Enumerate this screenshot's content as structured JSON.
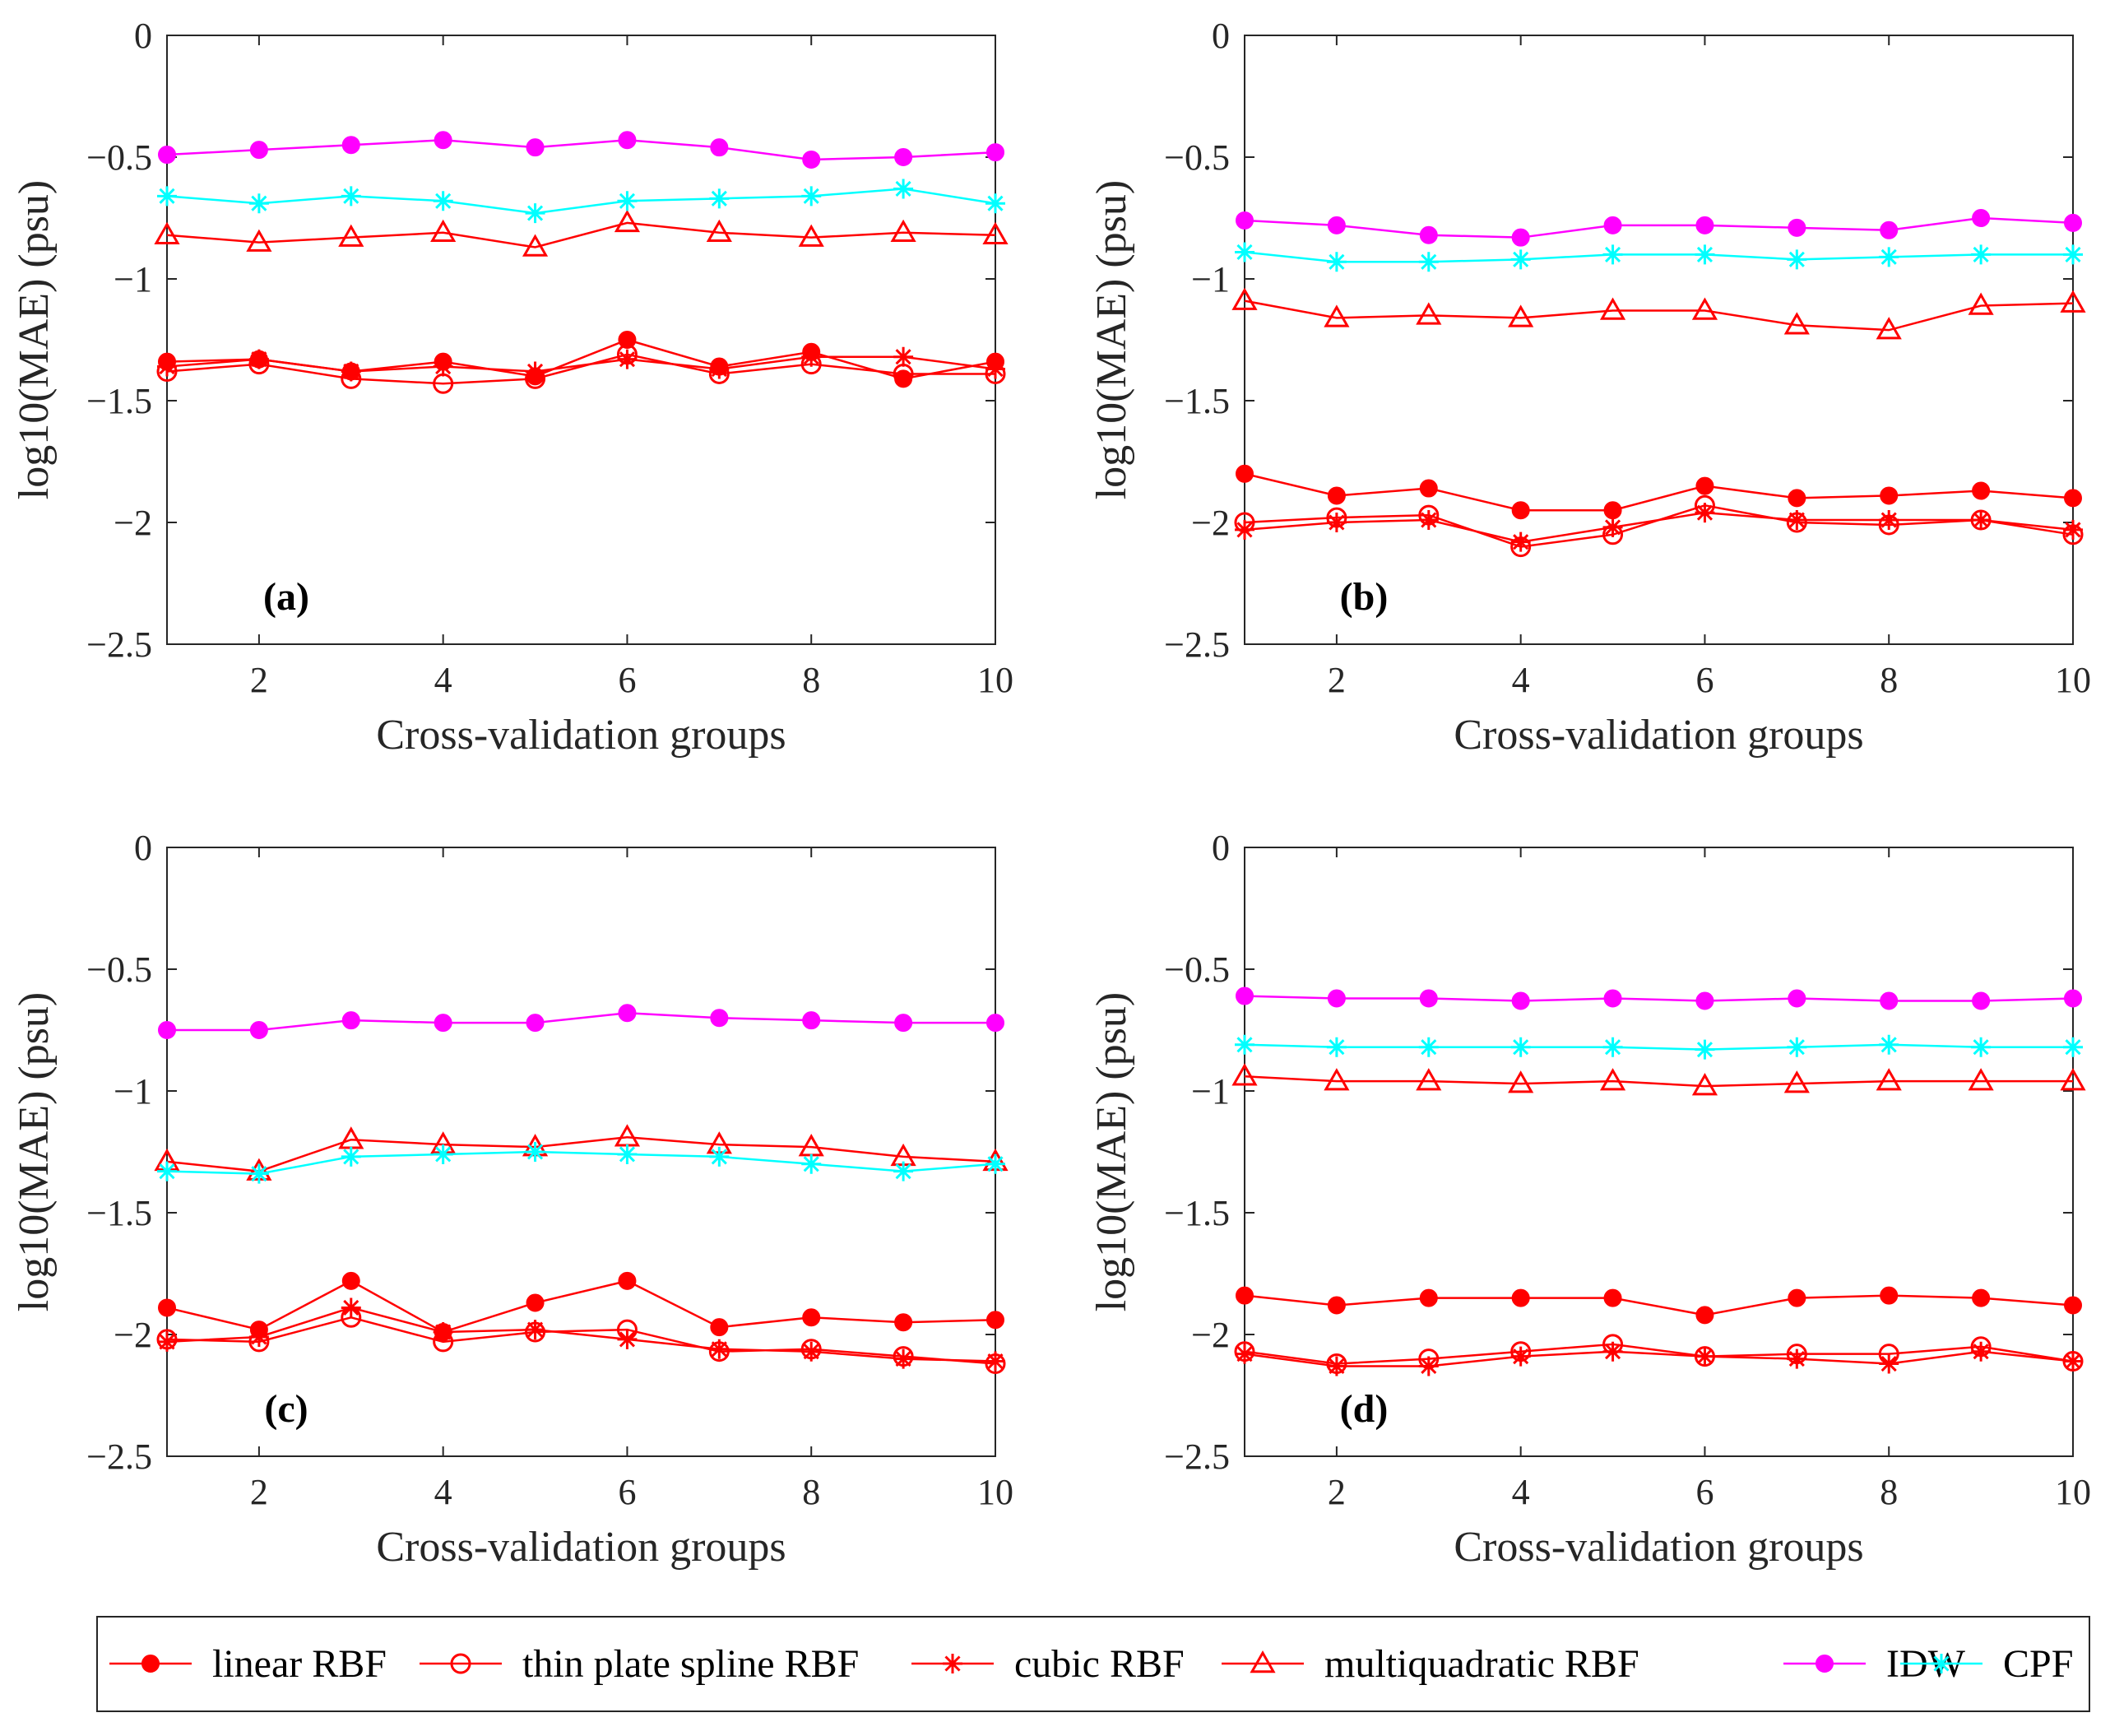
{
  "colors": {
    "red": "#ff0000",
    "magenta": "#ff00ff",
    "cyan": "#00ffff",
    "axis": "#262626"
  },
  "legend": [
    {
      "label": "linear RBF",
      "marker": "filled-circle",
      "color": "#ff0000"
    },
    {
      "label": "thin plate spline RBF",
      "marker": "open-circle",
      "color": "#ff0000"
    },
    {
      "label": "cubic RBF",
      "marker": "asterisk",
      "color": "#ff0000"
    },
    {
      "label": "multiquadratic RBF",
      "marker": "open-triangle",
      "color": "#ff0000"
    },
    {
      "label": "IDW",
      "marker": "filled-circle",
      "color": "#ff00ff"
    },
    {
      "label": "CPF",
      "marker": "asterisk",
      "color": "#00ffff"
    }
  ],
  "chart_data": [
    {
      "type": "line",
      "panel": "(a)",
      "xlabel": "Cross-validation groups",
      "ylabel": "log10(MAE) (psu)",
      "xlim": [
        1,
        10
      ],
      "ylim": [
        -2.5,
        0
      ],
      "xticks": [
        2,
        4,
        6,
        8,
        10
      ],
      "yticks": [
        0,
        -0.5,
        -1,
        -1.5,
        -2,
        -2.5
      ],
      "ytick_labels": [
        "0",
        "−0.5",
        "−1",
        "−1.5",
        "−2",
        "−2.5"
      ],
      "x": [
        1,
        2,
        3,
        4,
        5,
        6,
        7,
        8,
        9,
        10
      ],
      "series": [
        {
          "name": "linear RBF",
          "values": [
            -1.34,
            -1.33,
            -1.38,
            -1.34,
            -1.4,
            -1.25,
            -1.36,
            -1.3,
            -1.41,
            -1.34
          ]
        },
        {
          "name": "thin plate spline RBF",
          "values": [
            -1.38,
            -1.35,
            -1.41,
            -1.43,
            -1.41,
            -1.31,
            -1.39,
            -1.35,
            -1.39,
            -1.39
          ]
        },
        {
          "name": "cubic RBF",
          "values": [
            -1.36,
            -1.33,
            -1.38,
            -1.36,
            -1.38,
            -1.33,
            -1.37,
            -1.32,
            -1.32,
            -1.37
          ]
        },
        {
          "name": "multiquadratic RBF",
          "values": [
            -0.82,
            -0.85,
            -0.83,
            -0.81,
            -0.87,
            -0.77,
            -0.81,
            -0.83,
            -0.81,
            -0.82
          ]
        },
        {
          "name": "IDW",
          "values": [
            -0.49,
            -0.47,
            -0.45,
            -0.43,
            -0.46,
            -0.43,
            -0.46,
            -0.51,
            -0.5,
            -0.48
          ]
        },
        {
          "name": "CPF",
          "values": [
            -0.66,
            -0.69,
            -0.66,
            -0.68,
            -0.73,
            -0.68,
            -0.67,
            -0.66,
            -0.63,
            -0.69
          ]
        }
      ]
    },
    {
      "type": "line",
      "panel": "(b)",
      "xlabel": "Cross-validation groups",
      "ylabel": "log10(MAE) (psu)",
      "xlim": [
        1,
        10
      ],
      "ylim": [
        -2.5,
        0
      ],
      "xticks": [
        2,
        4,
        6,
        8,
        10
      ],
      "yticks": [
        0,
        -0.5,
        -1,
        -1.5,
        -2,
        -2.5
      ],
      "ytick_labels": [
        "0",
        "−0.5",
        "−1",
        "−1.5",
        "−2",
        "−2.5"
      ],
      "x": [
        1,
        2,
        3,
        4,
        5,
        6,
        7,
        8,
        9,
        10
      ],
      "series": [
        {
          "name": "linear RBF",
          "values": [
            -1.8,
            -1.89,
            -1.86,
            -1.95,
            -1.95,
            -1.85,
            -1.9,
            -1.89,
            -1.87,
            -1.9
          ]
        },
        {
          "name": "thin plate spline RBF",
          "values": [
            -2.0,
            -1.98,
            -1.97,
            -2.1,
            -2.05,
            -1.93,
            -2.0,
            -2.01,
            -1.99,
            -2.05
          ]
        },
        {
          "name": "cubic RBF",
          "values": [
            -2.03,
            -2.0,
            -1.99,
            -2.08,
            -2.02,
            -1.96,
            -1.99,
            -1.99,
            -1.99,
            -2.03
          ]
        },
        {
          "name": "multiquadratic RBF",
          "values": [
            -1.09,
            -1.16,
            -1.15,
            -1.16,
            -1.13,
            -1.13,
            -1.19,
            -1.21,
            -1.11,
            -1.1
          ]
        },
        {
          "name": "IDW",
          "values": [
            -0.76,
            -0.78,
            -0.82,
            -0.83,
            -0.78,
            -0.78,
            -0.79,
            -0.8,
            -0.75,
            -0.77
          ]
        },
        {
          "name": "CPF",
          "values": [
            -0.89,
            -0.93,
            -0.93,
            -0.92,
            -0.9,
            -0.9,
            -0.92,
            -0.91,
            -0.9,
            -0.9
          ]
        }
      ]
    },
    {
      "type": "line",
      "panel": "(c)",
      "xlabel": "Cross-validation groups",
      "ylabel": "log10(MAE) (psu)",
      "xlim": [
        1,
        10
      ],
      "ylim": [
        -2.5,
        0
      ],
      "xticks": [
        2,
        4,
        6,
        8,
        10
      ],
      "yticks": [
        0,
        -0.5,
        -1,
        -1.5,
        -2,
        -2.5
      ],
      "ytick_labels": [
        "0",
        "−0.5",
        "−1",
        "−1.5",
        "−2",
        "−2.5"
      ],
      "x": [
        1,
        2,
        3,
        4,
        5,
        6,
        7,
        8,
        9,
        10
      ],
      "series": [
        {
          "name": "linear RBF",
          "values": [
            -1.89,
            -1.98,
            -1.78,
            -1.99,
            -1.87,
            -1.78,
            -1.97,
            -1.93,
            -1.95,
            -1.94
          ]
        },
        {
          "name": "thin plate spline RBF",
          "values": [
            -2.02,
            -2.03,
            -1.93,
            -2.03,
            -1.99,
            -1.98,
            -2.07,
            -2.06,
            -2.09,
            -2.12
          ]
        },
        {
          "name": "cubic RBF",
          "values": [
            -2.03,
            -2.01,
            -1.89,
            -1.99,
            -1.98,
            -2.02,
            -2.06,
            -2.07,
            -2.1,
            -2.11
          ]
        },
        {
          "name": "multiquadratic RBF",
          "values": [
            -1.29,
            -1.33,
            -1.2,
            -1.22,
            -1.23,
            -1.19,
            -1.22,
            -1.23,
            -1.27,
            -1.29
          ]
        },
        {
          "name": "IDW",
          "values": [
            -0.75,
            -0.75,
            -0.71,
            -0.72,
            -0.72,
            -0.68,
            -0.7,
            -0.71,
            -0.72,
            -0.72
          ]
        },
        {
          "name": "CPF",
          "values": [
            -1.33,
            -1.34,
            -1.27,
            -1.26,
            -1.25,
            -1.26,
            -1.27,
            -1.3,
            -1.33,
            -1.3
          ]
        }
      ]
    },
    {
      "type": "line",
      "panel": "(d)",
      "xlabel": "Cross-validation groups",
      "ylabel": "log10(MAE) (psu)",
      "xlim": [
        1,
        10
      ],
      "ylim": [
        -2.5,
        0
      ],
      "xticks": [
        2,
        4,
        6,
        8,
        10
      ],
      "yticks": [
        0,
        -0.5,
        -1,
        -1.5,
        -2,
        -2.5
      ],
      "ytick_labels": [
        "0",
        "−0.5",
        "−1",
        "−1.5",
        "−2",
        "−2.5"
      ],
      "x": [
        1,
        2,
        3,
        4,
        5,
        6,
        7,
        8,
        9,
        10
      ],
      "series": [
        {
          "name": "linear RBF",
          "values": [
            -1.84,
            -1.88,
            -1.85,
            -1.85,
            -1.85,
            -1.92,
            -1.85,
            -1.84,
            -1.85,
            -1.88
          ]
        },
        {
          "name": "thin plate spline RBF",
          "values": [
            -2.07,
            -2.12,
            -2.1,
            -2.07,
            -2.04,
            -2.09,
            -2.08,
            -2.08,
            -2.05,
            -2.11
          ]
        },
        {
          "name": "cubic RBF",
          "values": [
            -2.08,
            -2.13,
            -2.13,
            -2.09,
            -2.07,
            -2.09,
            -2.1,
            -2.12,
            -2.07,
            -2.11
          ]
        },
        {
          "name": "multiquadratic RBF",
          "values": [
            -0.94,
            -0.96,
            -0.96,
            -0.97,
            -0.96,
            -0.98,
            -0.97,
            -0.96,
            -0.96,
            -0.96
          ]
        },
        {
          "name": "IDW",
          "values": [
            -0.61,
            -0.62,
            -0.62,
            -0.63,
            -0.62,
            -0.63,
            -0.62,
            -0.63,
            -0.63,
            -0.62
          ]
        },
        {
          "name": "CPF",
          "values": [
            -0.81,
            -0.82,
            -0.82,
            -0.82,
            -0.82,
            -0.83,
            -0.82,
            -0.81,
            -0.82,
            -0.82
          ]
        }
      ]
    }
  ]
}
